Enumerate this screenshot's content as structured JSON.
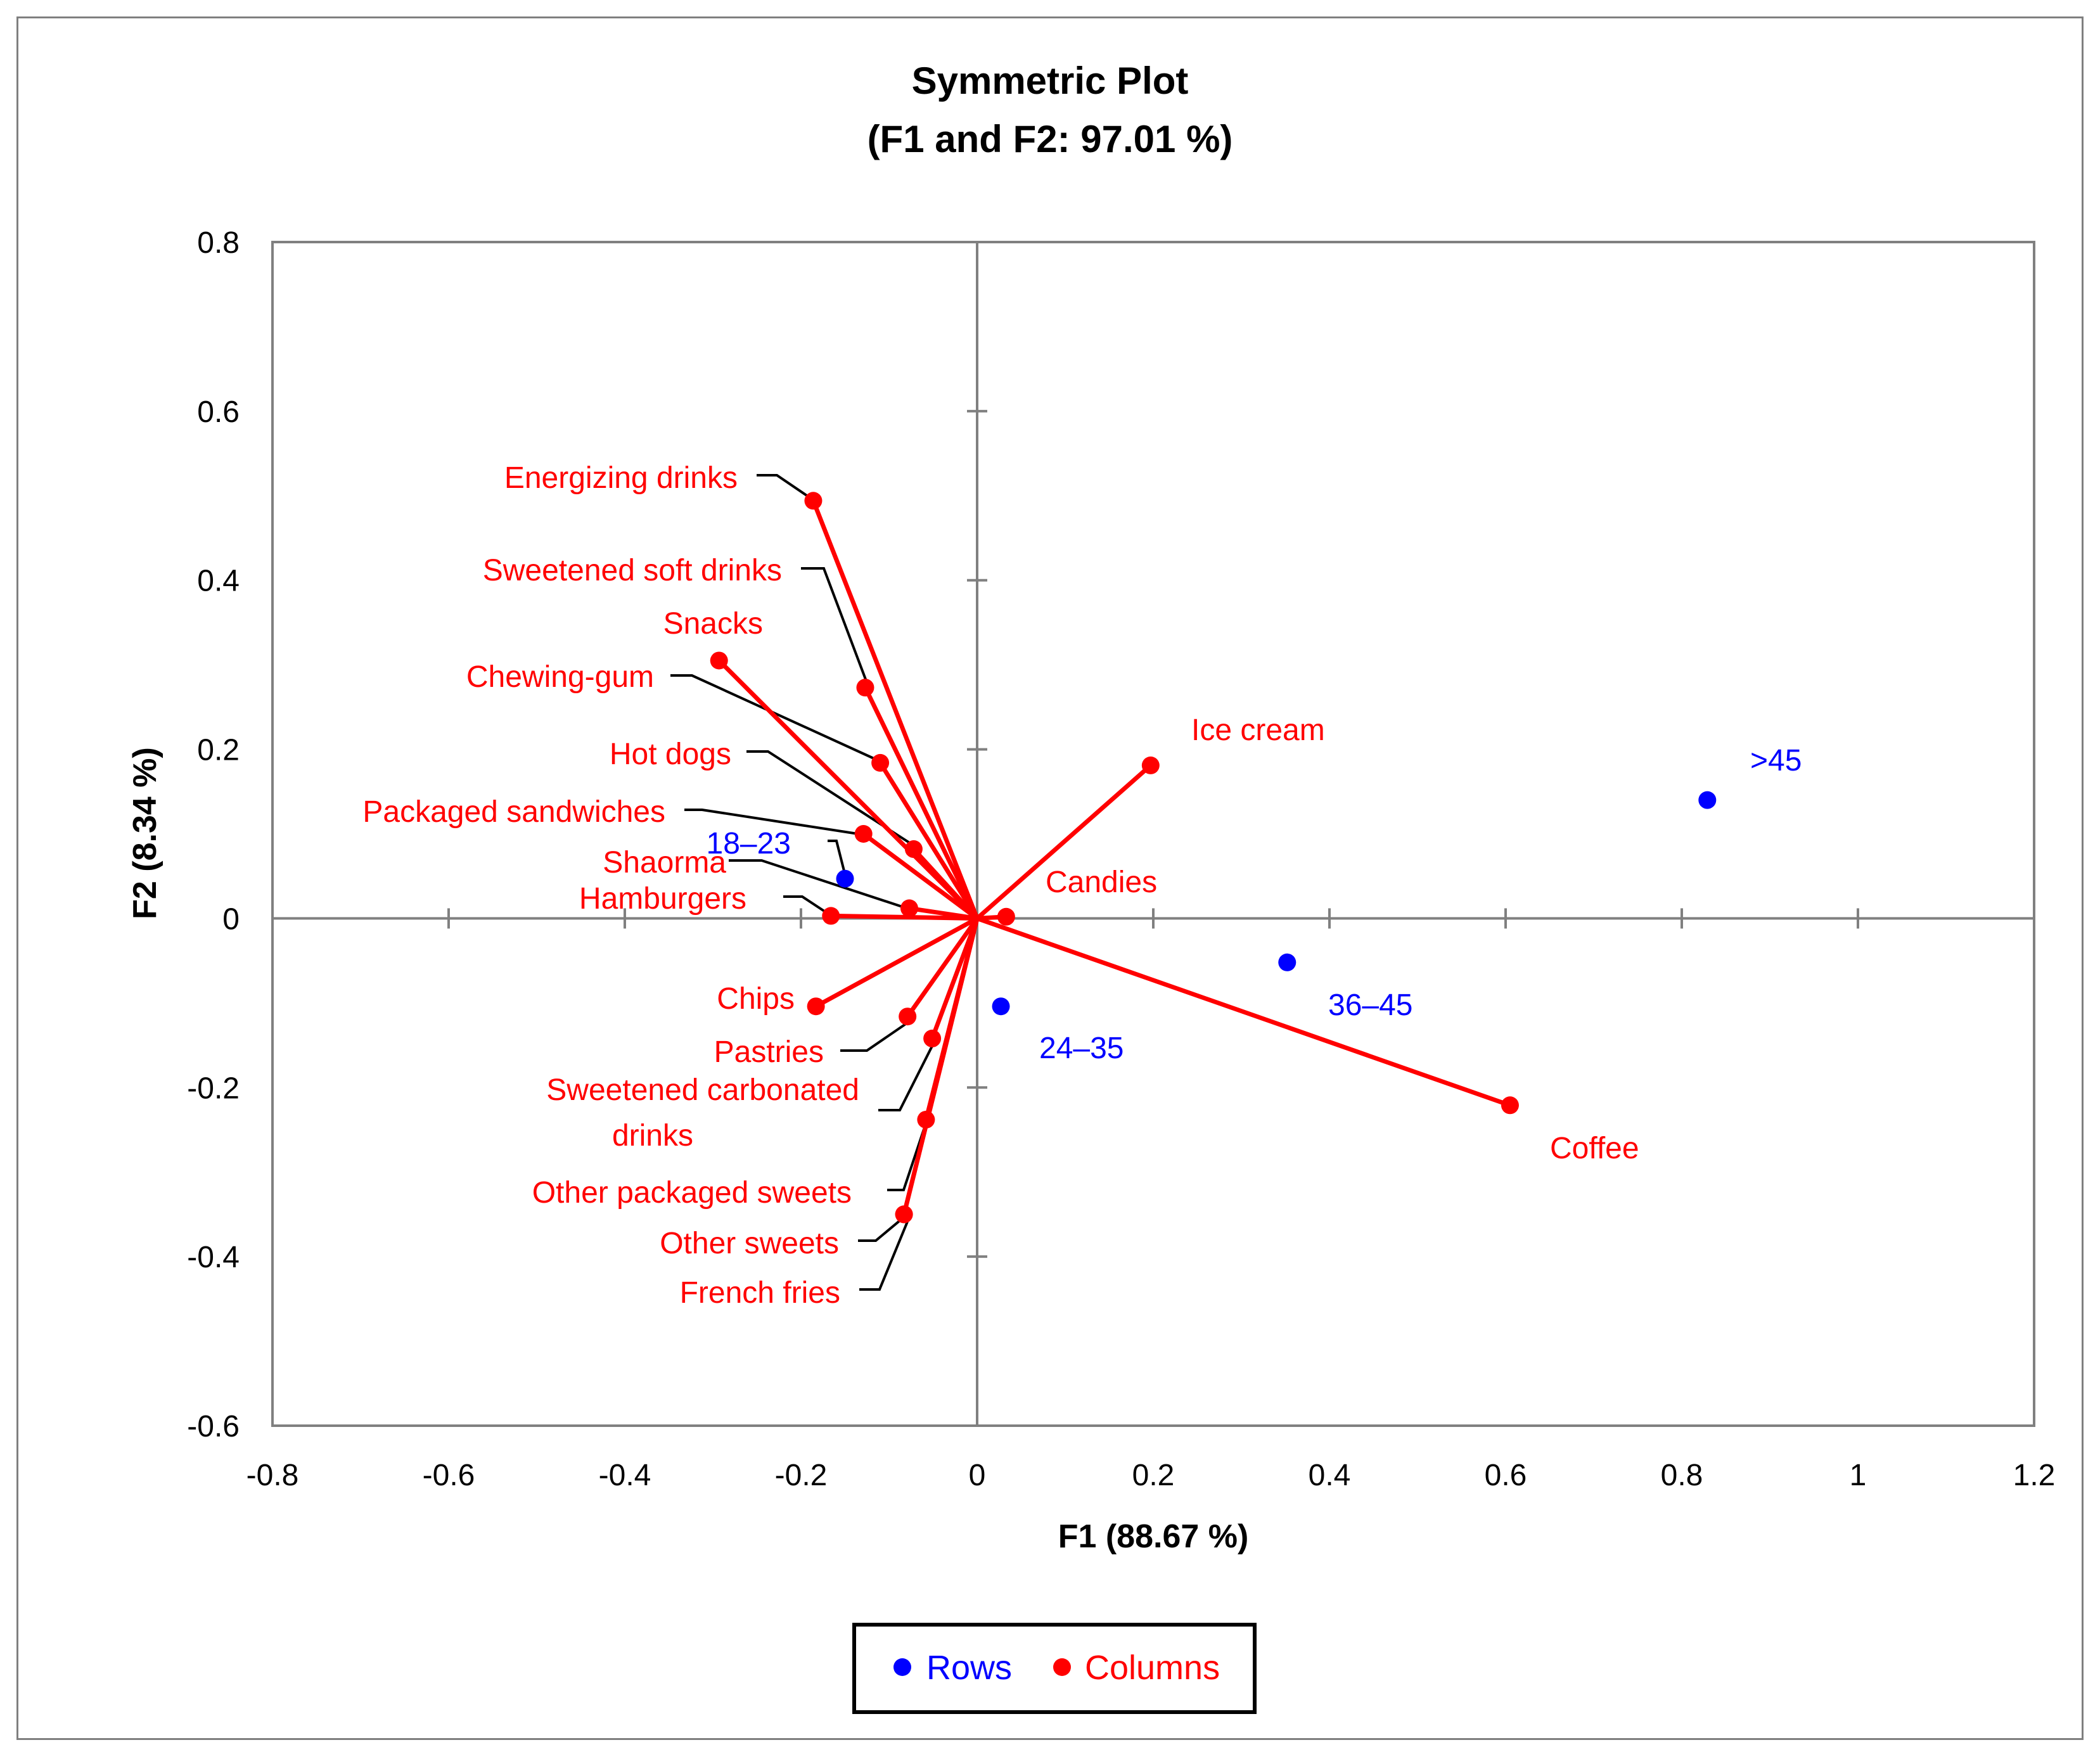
{
  "chart_data": {
    "type": "scatter",
    "title": "Symmetric Plot",
    "subtitle": "(F1 and F2: 97.01 %)",
    "xlabel": "F1 (88.67 %)",
    "ylabel": "F2 (8.34 %)",
    "xlim": [
      -0.8,
      1.2
    ],
    "ylim": [
      -0.6,
      0.8
    ],
    "xticks": [
      "-0.8",
      "-0.6",
      "-0.4",
      "-0.2",
      "0",
      "0.2",
      "0.4",
      "0.6",
      "0.8",
      "1",
      "1.2"
    ],
    "yticks": [
      "0.8",
      "0.6",
      "0.4",
      "0.2",
      "0",
      "-0.2",
      "-0.4",
      "-0.6"
    ],
    "legend": {
      "position": "bottom",
      "entries": [
        "Rows",
        "Columns"
      ]
    },
    "colors": {
      "rows": "#0000ff",
      "columns": "#ff0000",
      "axis": "#808080",
      "leader": "#000000"
    },
    "rows": [
      {
        "label": "18–23",
        "x": -0.15,
        "y": 0.047
      },
      {
        "label": "24–35",
        "x": 0.027,
        "y": -0.104
      },
      {
        "label": "36–45",
        "x": 0.352,
        "y": -0.052
      },
      {
        "label": ">45",
        "x": 0.829,
        "y": 0.14
      }
    ],
    "columns": [
      {
        "label": "Energizing drinks",
        "x": -0.186,
        "y": 0.494
      },
      {
        "label": "Sweetened soft drinks",
        "x": -0.127,
        "y": 0.273
      },
      {
        "label": "Snacks",
        "x": -0.293,
        "y": 0.305
      },
      {
        "label": "Chewing-gum",
        "x": -0.11,
        "y": 0.184
      },
      {
        "label": "Hot dogs",
        "x": -0.072,
        "y": 0.082
      },
      {
        "label": "Packaged sandwiches",
        "x": -0.129,
        "y": 0.1
      },
      {
        "label": "Shaorma",
        "x": -0.077,
        "y": 0.012
      },
      {
        "label": "Hamburgers",
        "x": -0.166,
        "y": 0.003
      },
      {
        "label": "Ice cream",
        "x": 0.197,
        "y": 0.181
      },
      {
        "label": "Candies",
        "x": 0.033,
        "y": 0.002
      },
      {
        "label": "Chips",
        "x": -0.183,
        "y": -0.104
      },
      {
        "label": "Pastries",
        "x": -0.079,
        "y": -0.116
      },
      {
        "label": "Sweetened carbonated drinks",
        "x": -0.051,
        "y": -0.142
      },
      {
        "label": "Other packaged sweets",
        "x": -0.058,
        "y": -0.238
      },
      {
        "label": "Other sweets",
        "x": -0.083,
        "y": -0.35
      },
      {
        "label": "French fries",
        "x": -0.083,
        "y": -0.35
      },
      {
        "label": "Coffee",
        "x": 0.605,
        "y": -0.221
      }
    ]
  }
}
